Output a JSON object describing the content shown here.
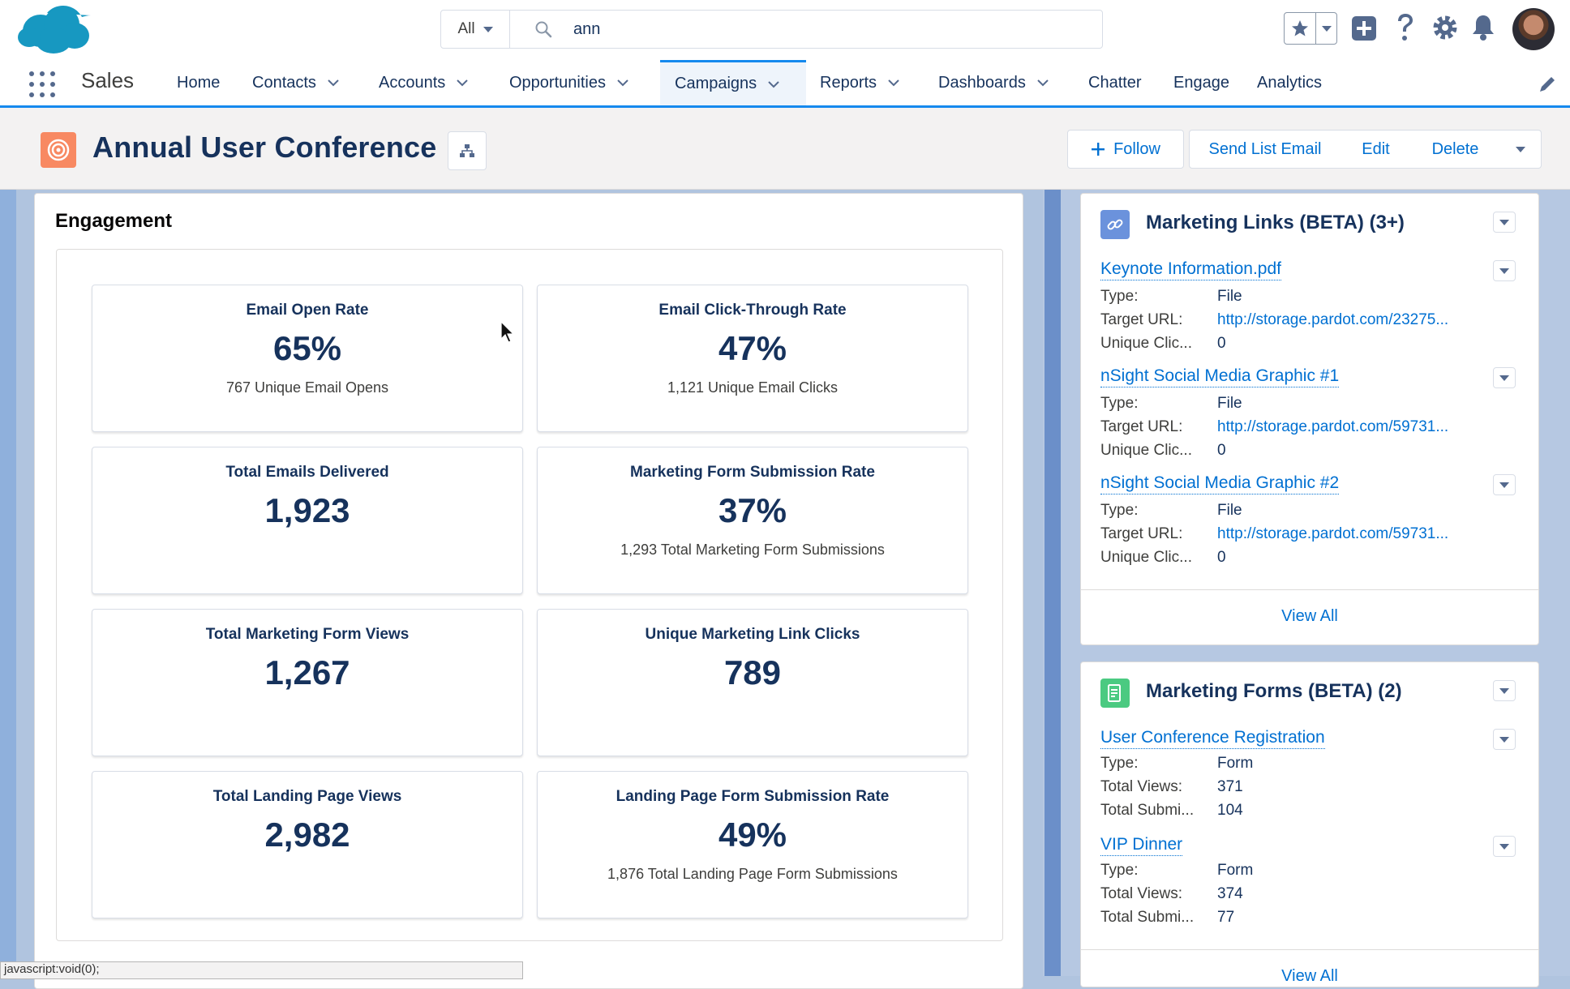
{
  "global_header": {
    "search_scope": "All",
    "search_value": "ann",
    "icons": [
      "salesforce-logo",
      "search-icon",
      "star-icon",
      "plus-icon",
      "help-icon",
      "gear-icon",
      "bell-icon",
      "avatar"
    ]
  },
  "nav": {
    "app_name": "Sales",
    "items": [
      {
        "label": "Home"
      },
      {
        "label": "Contacts"
      },
      {
        "label": "Accounts"
      },
      {
        "label": "Opportunities"
      },
      {
        "label": "Campaigns"
      },
      {
        "label": "Reports"
      },
      {
        "label": "Dashboards"
      },
      {
        "label": "Chatter"
      },
      {
        "label": "Engage"
      },
      {
        "label": "Analytics"
      }
    ],
    "active": "Campaigns"
  },
  "record": {
    "title": "Annual User Conference",
    "icon": "campaign-target-icon",
    "actions": {
      "follow": "Follow",
      "send_list_email": "Send List Email",
      "edit": "Edit",
      "delete": "Delete"
    }
  },
  "engagement": {
    "title": "Engagement",
    "metrics": [
      {
        "label": "Email Open Rate",
        "value": "65%",
        "sub": "767 Unique Email Opens"
      },
      {
        "label": "Email Click-Through Rate",
        "value": "47%",
        "sub": "1,121 Unique Email Clicks"
      },
      {
        "label": "Total Emails Delivered",
        "value": "1,923",
        "sub": ""
      },
      {
        "label": "Marketing Form Submission Rate",
        "value": "37%",
        "sub": "1,293 Total Marketing Form Submissions"
      },
      {
        "label": "Total Marketing Form Views",
        "value": "1,267",
        "sub": ""
      },
      {
        "label": "Unique Marketing Link Clicks",
        "value": "789",
        "sub": ""
      },
      {
        "label": "Total Landing Page Views",
        "value": "2,982",
        "sub": ""
      },
      {
        "label": "Landing Page Form Submission Rate",
        "value": "49%",
        "sub": "1,876 Total Landing Page Form Submissions"
      }
    ]
  },
  "marketing_links": {
    "title": "Marketing Links (BETA) (3+)",
    "items": [
      {
        "name": "Keynote Information.pdf",
        "type_label": "Type:",
        "type": "File",
        "url_label": "Target URL:",
        "url": "http://storage.pardot.com/23275...",
        "clicks_label": "Unique Clic...",
        "clicks": "0"
      },
      {
        "name": "nSight Social Media Graphic #1",
        "type_label": "Type:",
        "type": "File",
        "url_label": "Target URL:",
        "url": "http://storage.pardot.com/59731...",
        "clicks_label": "Unique Clic...",
        "clicks": "0"
      },
      {
        "name": "nSight Social Media Graphic #2",
        "type_label": "Type:",
        "type": "File",
        "url_label": "Target URL:",
        "url": "http://storage.pardot.com/59731...",
        "clicks_label": "Unique Clic...",
        "clicks": "0"
      }
    ],
    "view_all": "View All"
  },
  "marketing_forms": {
    "title": "Marketing Forms (BETA) (2)",
    "items": [
      {
        "name": "User Conference Registration",
        "type_label": "Type:",
        "type": "Form",
        "views_label": "Total Views:",
        "views": "371",
        "subs_label": "Total Submi...",
        "subs": "104"
      },
      {
        "name": "VIP Dinner",
        "type_label": "Type:",
        "type": "Form",
        "views_label": "Total Views:",
        "views": "374",
        "subs_label": "Total Submi...",
        "subs": "77"
      }
    ],
    "view_all": "View All"
  },
  "status_bar": "javascript:void(0);",
  "colors": {
    "brand_blue": "#0070d2",
    "nav_accent": "#1589ee",
    "campaign_orange": "#f88962",
    "links_icon": "#6b92dc",
    "forms_icon": "#4bca81"
  }
}
